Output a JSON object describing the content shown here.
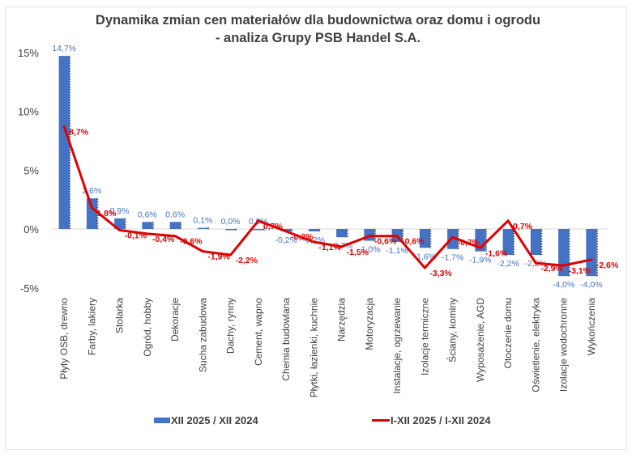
{
  "chart_data": {
    "type": "bar",
    "title": "Dynamika zmian cen materiałów dla budownictwa oraz domu i ogrodu",
    "subtitle": "- analiza Grupy PSB Handel S.A.",
    "xlabel": "",
    "ylabel": "",
    "ylim": [
      -5,
      15
    ],
    "yticks": [
      15,
      10,
      5,
      0,
      -5
    ],
    "ytick_labels": [
      "15%",
      "10%",
      "5%",
      "0%",
      "-5%"
    ],
    "grid": false,
    "legend_position": "bottom",
    "categories": [
      "Płyty OSB, drewno",
      "Farby, lakiery",
      "Stolarka",
      "Ogród, hobby",
      "Dekoracje",
      "Sucha zabudowa",
      "Dachy, rynny",
      "Cement, wapno",
      "Chemia budowlana",
      "Płytki, łazienki, kuchnie",
      "Narzędzia",
      "Motoryzacja",
      "Instalacje, ogrzewanie",
      "Izolacje termiczne",
      "Ściany, kominy",
      "Wyposażenie, AGD",
      "Otoczenie domu",
      "Oświetlenie, elektryka",
      "Izolacje wodochronne",
      "Wykończenia"
    ],
    "series": [
      {
        "name": "XII 2025 / XII 2024",
        "type": "bar",
        "color": "#4472c4",
        "values": [
          14.7,
          2.6,
          0.9,
          0.6,
          0.6,
          0.1,
          0.0,
          0.0,
          -0.2,
          -0.2,
          -0.7,
          -1.0,
          -1.1,
          -1.6,
          -1.7,
          -1.9,
          -2.2,
          -2.2,
          -4.0,
          -4.0
        ],
        "labels": [
          "14,7%",
          "2,6%",
          "0,9%",
          "0,6%",
          "0,6%",
          "0,1%",
          "0,0%",
          "0,0%",
          "-0,2%",
          "-0,2%",
          "-0,7%",
          "-1,0%",
          "-1,1%",
          "-1,6%",
          "-1,7%",
          "-1,9%",
          "-2,2%",
          "-2,2%",
          "-4,0%",
          "-4,0%"
        ]
      },
      {
        "name": "I-XII 2025 / I-XII 2024",
        "type": "line",
        "color": "#e00000",
        "values": [
          8.7,
          1.8,
          -0.1,
          -0.4,
          -0.6,
          -1.9,
          -2.2,
          0.7,
          -0.2,
          -1.1,
          -1.5,
          -0.6,
          -0.6,
          -3.3,
          -0.7,
          -1.6,
          0.7,
          -2.9,
          -3.1,
          -2.6
        ],
        "labels": [
          "8,7%",
          "1,8%",
          "-0,1%",
          "-0,4%",
          "-0,6%",
          "-1,9%",
          "-2,2%",
          "0,7%",
          "-0,2%",
          "-1,1%",
          "-1,5%",
          "-0,6%",
          "-0,6%",
          "-3,3%",
          "-0,7%",
          "-1,6%",
          "0,7%",
          "-2,9%",
          "-3,1%",
          "-2,6%"
        ]
      }
    ]
  }
}
